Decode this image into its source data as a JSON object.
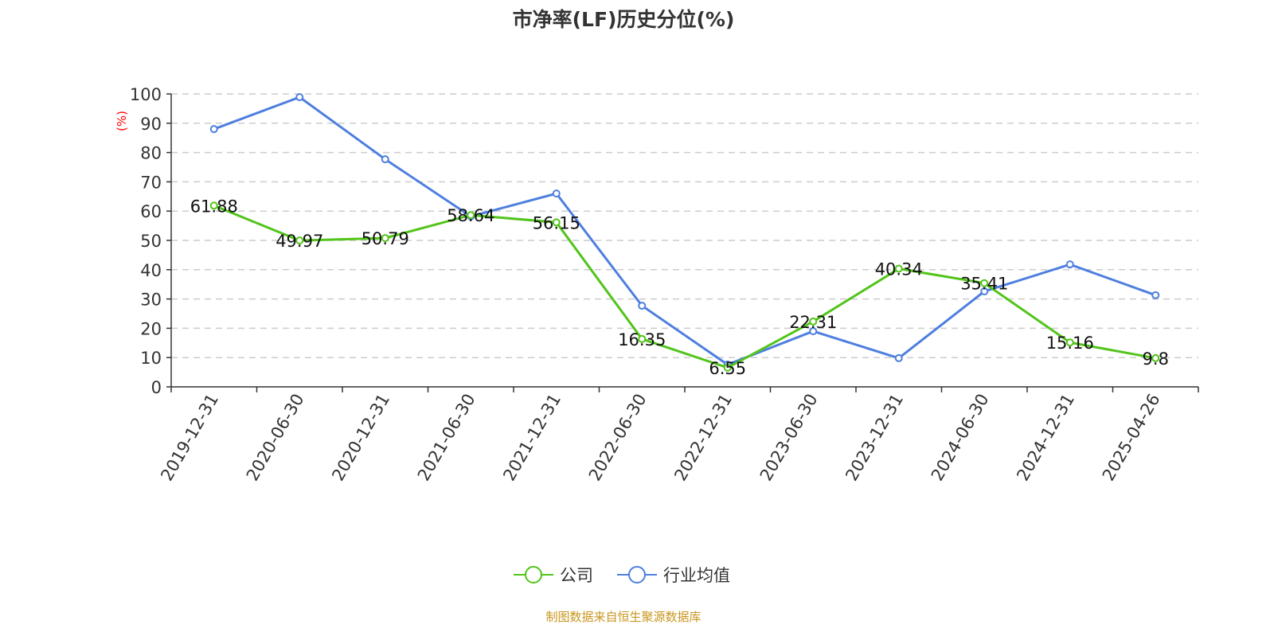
{
  "chart_data": {
    "type": "line",
    "title": "市净率(LF)历史分位(%)",
    "ylabel": "(%)",
    "xlabel": "",
    "ylim": [
      0,
      100
    ],
    "yticks": [
      0,
      10,
      20,
      30,
      40,
      50,
      60,
      70,
      80,
      90,
      100
    ],
    "grid": true,
    "legend_placement": "bottom",
    "categories": [
      "2019-12-31",
      "2020-06-30",
      "2020-12-31",
      "2021-06-30",
      "2021-12-31",
      "2022-06-30",
      "2022-12-31",
      "2023-06-30",
      "2023-12-31",
      "2024-06-30",
      "2024-12-31",
      "2025-04-26"
    ],
    "series": [
      {
        "name": "公司",
        "color": "#52c41a",
        "labels": true,
        "values": [
          61.88,
          49.97,
          50.79,
          58.64,
          56.15,
          16.35,
          6.55,
          22.31,
          40.34,
          35.41,
          15.16,
          9.8
        ]
      },
      {
        "name": "行业均值",
        "color": "#4e7fdf",
        "labels": false,
        "values": [
          88.0,
          98.9,
          77.7,
          58.2,
          66.0,
          27.7,
          7.6,
          19.0,
          9.8,
          32.6,
          41.8,
          31.3
        ]
      }
    ]
  },
  "footer": {
    "source": "制图数据来自恒生聚源数据库"
  },
  "colors": {
    "ylabel": "#ff0000",
    "source": "#c8961e",
    "grid": "#cccccc",
    "axis": "#333333"
  }
}
